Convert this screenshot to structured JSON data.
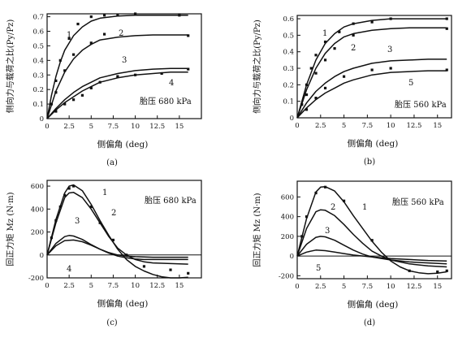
{
  "chart_data": [
    {
      "type": "line",
      "caption": "(a)",
      "xlabel": "侧偏角 (deg)",
      "ylabel": "侧向力与载荷之比(Py/Pz)",
      "annotation": "胎压 680 kPa",
      "xlim": [
        0,
        17.5
      ],
      "ylim": [
        0,
        0.72
      ],
      "xticks": [
        0,
        2.5,
        5,
        7.5,
        10,
        12.5,
        15
      ],
      "xtick_labels": [
        "0",
        "2.5",
        "5",
        "7.5",
        "10",
        "12.5",
        "15"
      ],
      "yticks": [
        0,
        0.1,
        0.2,
        0.3,
        0.4,
        0.5,
        0.6,
        0.7
      ],
      "ytick_labels": [
        "0",
        "0.1",
        "0.2",
        "0.3",
        "0.4",
        "0.5",
        "0.6",
        "0.7"
      ],
      "series": [
        {
          "name": "1",
          "x": [
            0,
            0.5,
            1,
            1.5,
            2,
            3,
            4,
            5,
            6,
            8,
            10,
            12,
            14,
            16
          ],
          "y": [
            0,
            0.16,
            0.29,
            0.39,
            0.47,
            0.57,
            0.63,
            0.67,
            0.69,
            0.705,
            0.71,
            0.71,
            0.71,
            0.71
          ]
        },
        {
          "name": "2",
          "x": [
            0,
            1,
            2,
            3,
            4,
            5,
            6,
            8,
            10,
            12,
            14,
            16
          ],
          "y": [
            0,
            0.19,
            0.32,
            0.41,
            0.47,
            0.51,
            0.54,
            0.56,
            0.57,
            0.575,
            0.575,
            0.575
          ]
        },
        {
          "name": "3",
          "x": [
            0,
            1,
            2,
            3,
            4,
            5,
            6,
            8,
            10,
            12,
            14,
            16
          ],
          "y": [
            0,
            0.07,
            0.13,
            0.18,
            0.22,
            0.25,
            0.28,
            0.31,
            0.33,
            0.34,
            0.345,
            0.345
          ]
        },
        {
          "name": "4",
          "x": [
            0,
            1,
            2,
            3,
            4,
            5,
            6,
            8,
            10,
            12,
            14,
            16
          ],
          "y": [
            0,
            0.06,
            0.11,
            0.15,
            0.19,
            0.22,
            0.25,
            0.28,
            0.3,
            0.31,
            0.32,
            0.32
          ]
        }
      ],
      "scatter": [
        {
          "x": [
            0.5,
            1,
            1.5,
            2.5,
            3.5,
            5,
            6.5,
            8,
            10,
            15
          ],
          "y": [
            0.1,
            0.26,
            0.4,
            0.55,
            0.65,
            0.7,
            0.71,
            0.71,
            0.72,
            0.71
          ]
        },
        {
          "x": [
            1,
            2,
            3,
            5,
            6.5,
            16
          ],
          "y": [
            0.18,
            0.33,
            0.44,
            0.52,
            0.58,
            0.57
          ]
        },
        {
          "x": [
            1,
            2,
            3,
            4,
            5,
            6,
            8,
            10,
            13,
            16
          ],
          "y": [
            0.05,
            0.1,
            0.13,
            0.16,
            0.21,
            0.25,
            0.29,
            0.3,
            0.31,
            0.34
          ]
        }
      ]
    },
    {
      "type": "line",
      "caption": "(b)",
      "xlabel": "侧偏角 (deg)",
      "ylabel": "侧向力与载荷之比(Py/Pz)",
      "annotation": "胎压 560 kPa",
      "xlim": [
        0,
        16.5
      ],
      "ylim": [
        0,
        0.62
      ],
      "xticks": [
        0,
        2.5,
        5,
        7.5,
        10,
        12.5,
        15
      ],
      "xtick_labels": [
        "0",
        "2.5",
        "5",
        "7.5",
        "10",
        "12.5",
        "15"
      ],
      "yticks": [
        0,
        0.1,
        0.2,
        0.3,
        0.4,
        0.5,
        0.6
      ],
      "ytick_labels": [
        "0",
        "0.1",
        "0.2",
        "0.3",
        "0.4",
        "0.5",
        "0.6"
      ],
      "series": [
        {
          "name": "1",
          "x": [
            0,
            1,
            2,
            3,
            4,
            5,
            6,
            8,
            10,
            12,
            14,
            16
          ],
          "y": [
            0,
            0.2,
            0.35,
            0.45,
            0.51,
            0.55,
            0.57,
            0.59,
            0.6,
            0.6,
            0.6,
            0.6
          ]
        },
        {
          "name": "2",
          "x": [
            0,
            1,
            2,
            3,
            4,
            5,
            6,
            8,
            10,
            12,
            14,
            16
          ],
          "y": [
            0,
            0.17,
            0.3,
            0.39,
            0.45,
            0.49,
            0.51,
            0.53,
            0.54,
            0.545,
            0.545,
            0.545
          ]
        },
        {
          "name": "3",
          "x": [
            0,
            1,
            2,
            3,
            4,
            5,
            6,
            8,
            10,
            12,
            14,
            16
          ],
          "y": [
            0,
            0.09,
            0.16,
            0.21,
            0.25,
            0.28,
            0.3,
            0.33,
            0.345,
            0.35,
            0.355,
            0.355
          ]
        },
        {
          "name": "5",
          "x": [
            0,
            1,
            2,
            3,
            4,
            5,
            6,
            8,
            10,
            12,
            14,
            16
          ],
          "y": [
            0,
            0.06,
            0.11,
            0.15,
            0.18,
            0.21,
            0.23,
            0.26,
            0.275,
            0.28,
            0.285,
            0.285
          ]
        }
      ],
      "scatter": [
        {
          "x": [
            0.5,
            1,
            1.5,
            2,
            3,
            4.5,
            6,
            8,
            10,
            16
          ],
          "y": [
            0.08,
            0.2,
            0.3,
            0.38,
            0.46,
            0.52,
            0.57,
            0.58,
            0.6,
            0.6
          ]
        },
        {
          "x": [
            1,
            2,
            3,
            4,
            6,
            16
          ],
          "y": [
            0.14,
            0.27,
            0.35,
            0.42,
            0.5,
            0.54
          ]
        },
        {
          "x": [
            1,
            2,
            3,
            5,
            8,
            10,
            16
          ],
          "y": [
            0.05,
            0.12,
            0.18,
            0.25,
            0.29,
            0.3,
            0.29
          ]
        }
      ]
    },
    {
      "type": "line",
      "caption": "(c)",
      "xlabel": "侧偏角 (deg)",
      "ylabel": "回正力矩 Mz (N·m)",
      "annotation": "胎压 680 kPa",
      "xlim": [
        0,
        17.5
      ],
      "ylim": [
        -200,
        650
      ],
      "xticks": [
        0,
        2.5,
        5,
        7.5,
        10,
        12.5,
        15
      ],
      "xtick_labels": [
        "0",
        "2.5",
        "5",
        "7.5",
        "10",
        "12.5",
        "15"
      ],
      "yticks": [
        -200,
        0,
        200,
        400,
        600
      ],
      "ytick_labels": [
        "-200",
        "0",
        "200",
        "400",
        "600"
      ],
      "series": [
        {
          "name": "1",
          "x": [
            0,
            1,
            2,
            2.5,
            3,
            4,
            5,
            6,
            7,
            8,
            9,
            10,
            11,
            12,
            13,
            14,
            15,
            16
          ],
          "y": [
            0,
            310,
            540,
            600,
            610,
            560,
            440,
            300,
            170,
            50,
            -40,
            -100,
            -140,
            -170,
            -190,
            -200,
            -200,
            -195
          ]
        },
        {
          "name": "2",
          "x": [
            0,
            1,
            2,
            2.5,
            3,
            4,
            5,
            6,
            7,
            8,
            9,
            10,
            11,
            12,
            14,
            16
          ],
          "y": [
            0,
            280,
            500,
            540,
            545,
            500,
            400,
            280,
            160,
            60,
            0,
            -40,
            -60,
            -70,
            -75,
            -80
          ]
        },
        {
          "name": "3",
          "x": [
            0,
            1,
            2,
            2.5,
            3,
            4,
            5,
            6,
            7,
            8,
            9,
            10,
            11,
            12,
            14,
            16
          ],
          "y": [
            0,
            100,
            160,
            170,
            165,
            135,
            90,
            50,
            15,
            -10,
            -25,
            -35,
            -40,
            -40,
            -40,
            -40
          ]
        },
        {
          "name": "4",
          "x": [
            0,
            1,
            2,
            3,
            4,
            5,
            6,
            7,
            8,
            9,
            10,
            12,
            14,
            16
          ],
          "y": [
            0,
            80,
            125,
            130,
            115,
            85,
            50,
            20,
            0,
            -10,
            -15,
            -20,
            -20,
            -20
          ]
        }
      ],
      "scatter": [
        {
          "x": [
            0.5,
            1,
            1.5,
            2,
            2.5,
            3,
            5,
            6,
            7.5,
            9,
            11,
            14,
            16
          ],
          "y": [
            150,
            300,
            420,
            520,
            580,
            600,
            420,
            280,
            130,
            0,
            -100,
            -130,
            -160
          ]
        }
      ]
    },
    {
      "type": "line",
      "caption": "(d)",
      "xlabel": "侧偏角 (deg)",
      "ylabel": "回正力矩 Mz (N·m)",
      "annotation": "胎压 560 kPa",
      "xlim": [
        0,
        16.5
      ],
      "ylim": [
        -230,
        760
      ],
      "xticks": [
        0,
        2.5,
        5,
        7.5,
        10,
        12.5,
        15
      ],
      "xtick_labels": [
        "0",
        "2.5",
        "5",
        "7.5",
        "10",
        "12.5",
        "15"
      ],
      "yticks": [
        -200,
        0,
        200,
        400,
        600
      ],
      "ytick_labels": [
        "-200",
        "0",
        "200",
        "400",
        "600"
      ],
      "series": [
        {
          "name": "1",
          "x": [
            0,
            1,
            2,
            2.5,
            3,
            4,
            5,
            6,
            7,
            8,
            9,
            10,
            11,
            12,
            13,
            14,
            15,
            16
          ],
          "y": [
            0,
            380,
            650,
            700,
            705,
            660,
            550,
            410,
            280,
            150,
            40,
            -50,
            -110,
            -150,
            -170,
            -180,
            -175,
            -160
          ]
        },
        {
          "name": "2",
          "x": [
            0,
            1,
            2,
            2.5,
            3,
            4,
            5,
            6,
            7,
            8,
            9,
            10,
            12,
            14,
            16
          ],
          "y": [
            0,
            280,
            450,
            470,
            465,
            410,
            320,
            220,
            130,
            50,
            0,
            -40,
            -80,
            -100,
            -110
          ]
        },
        {
          "name": "3",
          "x": [
            0,
            1,
            2,
            2.5,
            3,
            4,
            5,
            6,
            7,
            8,
            10,
            12,
            14,
            16
          ],
          "y": [
            0,
            120,
            190,
            200,
            195,
            160,
            110,
            60,
            20,
            -10,
            -40,
            -60,
            -70,
            -80
          ]
        },
        {
          "name": "5",
          "x": [
            0,
            1,
            2,
            3,
            4,
            5,
            6,
            8,
            10,
            12,
            14,
            16
          ],
          "y": [
            0,
            40,
            60,
            55,
            40,
            25,
            10,
            -10,
            -25,
            -35,
            -45,
            -50
          ]
        }
      ],
      "scatter": [
        {
          "x": [
            0.5,
            1,
            2,
            3,
            5,
            8,
            12,
            15,
            16
          ],
          "y": [
            200,
            400,
            640,
            700,
            560,
            160,
            -150,
            -160,
            -150
          ]
        }
      ]
    }
  ]
}
